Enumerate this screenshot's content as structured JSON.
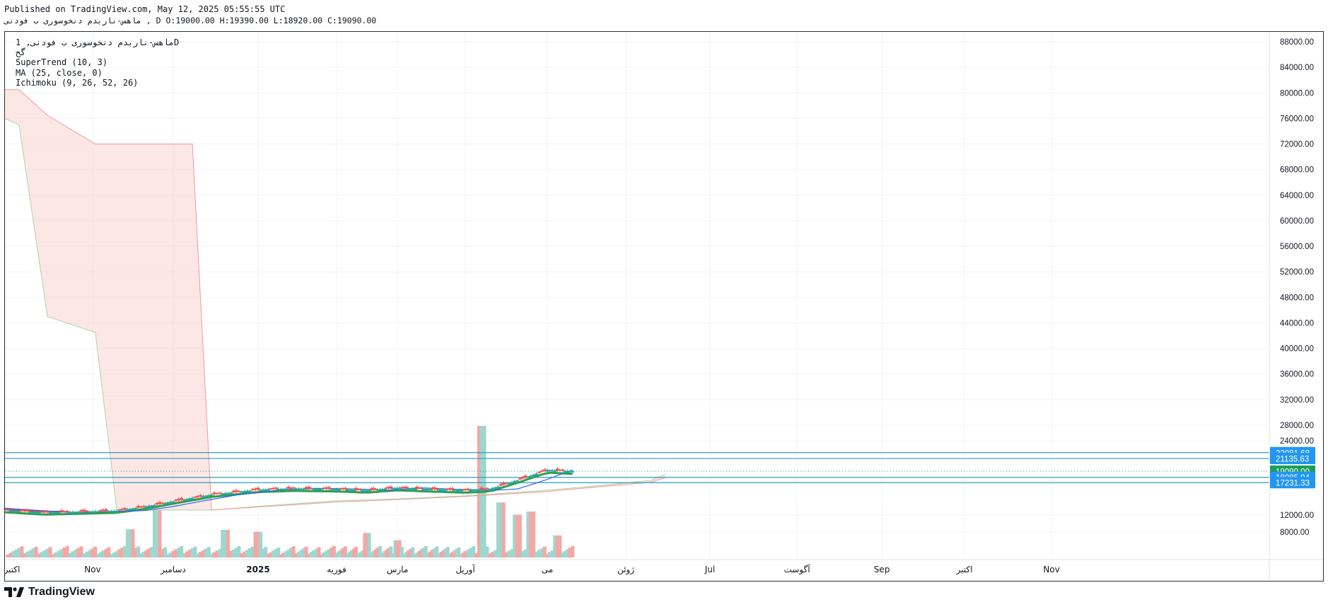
{
  "header": {
    "published": "Published on TradingView.com, May 12, 2025 05:55:55 UTC",
    "symbol_line": "ماهس-ناربدم دنخوسوری ب فودنی , D O:19000.00 H:19390.00 L:18920.00 C:19090.00"
  },
  "legend": {
    "symbol": "ماهس-ناربدم دنخوسوری ب فودنی, 1D",
    "sub": "گح",
    "indicators": [
      "SuperTrend (10, 3)",
      "MA (25, close, 0)",
      "Ichimoku (9, 26, 52, 26)"
    ]
  },
  "footer": {
    "brand": "TradingView"
  },
  "colors": {
    "up": "#26a69a",
    "down": "#ef5350",
    "supertrend_up": "#2e9e48",
    "supertrend_down": "#e53935",
    "ma": "#2962ff",
    "cloud_red": "#f8c9c3",
    "cloud_green": "#c8e6c9",
    "hline": "#2b9dc2",
    "price_label": "#2196f3",
    "last_price": "#1b9e5a"
  },
  "chart_data": {
    "type": "candlestick",
    "timeframe": "1D",
    "x_tick_labels": [
      "اکتبر",
      "Nov",
      "دسامبر",
      "2025",
      "فوریه",
      "مارس",
      "آوریل",
      "می",
      "ژوئن",
      "Jul",
      "آگوست",
      "Sep",
      "اکتبر",
      "Nov"
    ],
    "y_tick_labels": [
      "8000.00",
      "12000.00",
      "24000.00",
      "28000.00",
      "32000.00",
      "36000.00",
      "40000.00",
      "44000.00",
      "48000.00",
      "52000.00",
      "56000.00",
      "60000.00",
      "64000.00",
      "68000.00",
      "72000.00",
      "76000.00",
      "80000.00",
      "84000.00",
      "88000.00"
    ],
    "y_ticks": [
      8000,
      12000,
      24000,
      28000,
      32000,
      36000,
      40000,
      44000,
      48000,
      52000,
      56000,
      60000,
      64000,
      68000,
      72000,
      76000,
      80000,
      84000,
      88000
    ],
    "ylim": [
      4800,
      90000
    ],
    "x_tick_dates": [
      "2024-10-01",
      "2024-11-01",
      "2024-12-01",
      "2025-01-01",
      "2025-02-01",
      "2025-03-01",
      "2025-04-01",
      "2025-05-01",
      "2025-06-01",
      "2025-07-01",
      "2025-08-01",
      "2025-09-01",
      "2025-10-01",
      "2025-11-01"
    ],
    "ohlc": {
      "open": 19000.0,
      "high": 19390.0,
      "low": 18920.0,
      "close": 19090.0
    },
    "horizontal_levels": [
      {
        "value": 22081.68,
        "label": "22081.68"
      },
      {
        "value": 21135.63,
        "label": "21135.63"
      },
      {
        "value": 18085.94,
        "label": "18085.94"
      },
      {
        "value": 17231.33,
        "label": "17231.33"
      }
    ],
    "last_price": {
      "value": 19090.0,
      "label": "19090.00"
    },
    "price_series": {
      "dates": [
        "2024-10-01",
        "2024-10-15",
        "2024-11-01",
        "2024-11-10",
        "2024-11-20",
        "2024-12-01",
        "2024-12-15",
        "2025-01-01",
        "2025-01-15",
        "2025-02-01",
        "2025-02-15",
        "2025-03-01",
        "2025-03-15",
        "2025-04-01",
        "2025-04-10",
        "2025-04-20",
        "2025-05-01",
        "2025-05-10"
      ],
      "close": [
        12800,
        12400,
        12600,
        12700,
        13300,
        14200,
        15300,
        16100,
        16300,
        16200,
        16000,
        16400,
        16200,
        16000,
        16200,
        17600,
        19300,
        19100
      ]
    },
    "ichimoku_cloud": {
      "dates": [
        "2024-10-01",
        "2024-10-06",
        "2024-10-16",
        "2024-11-02",
        "2024-11-10",
        "2024-12-03",
        "2024-12-08",
        "2024-12-15",
        "2025-01-01",
        "2025-02-01",
        "2025-03-01",
        "2025-04-01",
        "2025-05-01",
        "2025-05-20",
        "2025-06-10",
        "2025-06-15"
      ],
      "span_a": [
        76000,
        75000,
        45000,
        42500,
        12800,
        12800,
        12800,
        12800,
        13400,
        14300,
        14600,
        15100,
        16000,
        16700,
        17600,
        18600
      ],
      "span_b": [
        80500,
        80500,
        76500,
        72000,
        72000,
        72000,
        72000,
        12800,
        13300,
        14100,
        14500,
        15000,
        15800,
        16500,
        17300,
        18000
      ]
    },
    "volume": {
      "dates": [
        "2024-11-15",
        "2024-11-25",
        "2024-12-20",
        "2025-01-01",
        "2025-02-15",
        "2025-03-01",
        "2025-04-07",
        "2025-04-14",
        "2025-04-20",
        "2025-04-25",
        "2025-05-05"
      ],
      "values": [
        4600,
        7800,
        4500,
        4200,
        4000,
        2800,
        21500,
        9000,
        7000,
        7500,
        3600
      ]
    }
  }
}
